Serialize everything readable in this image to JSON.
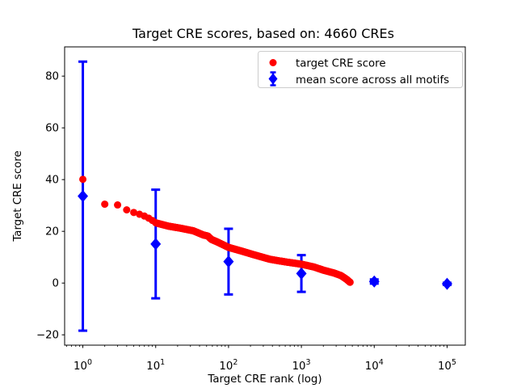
{
  "chart_data": {
    "type": "scatter",
    "title": "Target CRE scores, based on: 4660 CREs",
    "xlabel": "Target CRE rank (log)",
    "ylabel": "Target CRE score",
    "x_scale": "log",
    "xlim_log10": [
      -0.25,
      5.25
    ],
    "ylim": [
      -24,
      91.3
    ],
    "x_tick_exponents": [
      0,
      1,
      2,
      3,
      4,
      5
    ],
    "y_ticks": [
      -20,
      0,
      20,
      40,
      60,
      80
    ],
    "grid": false,
    "legend_position": "upper right",
    "colors": {
      "target": "#ff0000",
      "mean": "#0000ff",
      "axis": "#000000",
      "legend_border": "#cccccc",
      "background": "#ffffff"
    },
    "series": [
      {
        "name": "target CRE score",
        "marker": "circle",
        "color": "#ff0000",
        "n_points": 4660,
        "anchor_points": {
          "rank": [
            1,
            2,
            3,
            4,
            5,
            6,
            7,
            8,
            9,
            10,
            15,
            22,
            33,
            45,
            52,
            58,
            70,
            100,
            150,
            220,
            370,
            600,
            1000,
            1500,
            2000,
            2800,
            3500,
            4200,
            4660
          ],
          "score": [
            40.1,
            30.5,
            30.2,
            28.3,
            27.3,
            26.6,
            25.9,
            25.1,
            24.2,
            23.3,
            22.0,
            21.2,
            20.2,
            18.6,
            18.2,
            16.9,
            15.9,
            13.8,
            12.4,
            11.0,
            9.2,
            8.2,
            7.3,
            6.2,
            5.0,
            3.9,
            2.9,
            1.4,
            0.3
          ]
        }
      },
      {
        "name": "mean score across all motifs",
        "marker": "diamond",
        "color": "#0000ff",
        "points": {
          "rank": [
            1,
            10,
            100,
            1000,
            10000,
            100000
          ],
          "mean": [
            33.6,
            15.1,
            8.3,
            3.7,
            0.6,
            -0.3
          ],
          "yerr": [
            52.0,
            21.0,
            12.7,
            7.1,
            0.8,
            0.4
          ]
        }
      }
    ]
  }
}
